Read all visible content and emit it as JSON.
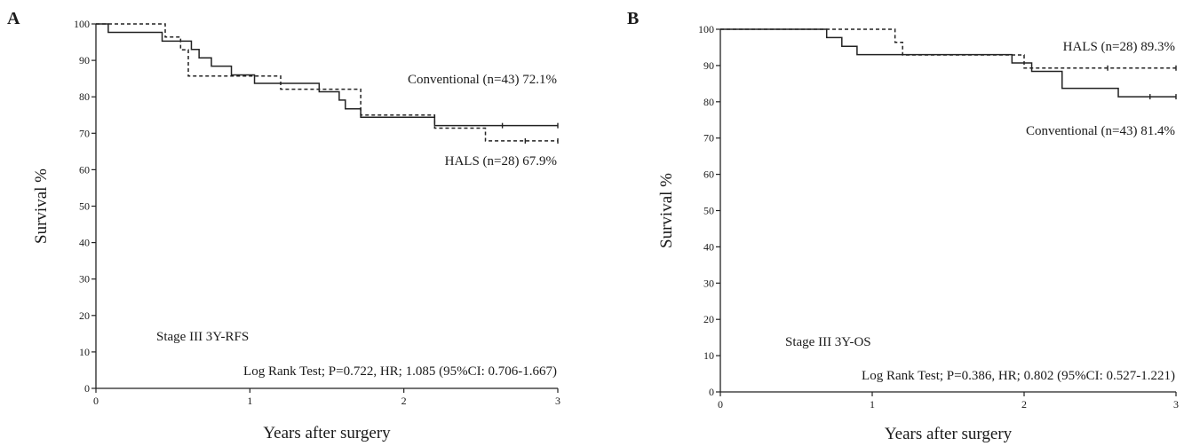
{
  "chart_data": [
    {
      "panel": "A",
      "type": "line",
      "xlabel": "Years after surgery",
      "ylabel": "Survival  %",
      "xlim": [
        0,
        3
      ],
      "ylim": [
        0,
        100
      ],
      "xticks": [
        "0",
        "1",
        "2",
        "3"
      ],
      "yticks": [
        "0",
        "10",
        "20",
        "30",
        "40",
        "50",
        "60",
        "70",
        "80",
        "90",
        "100"
      ],
      "grid": false,
      "series": [
        {
          "name": "Conventional (n=43) 72.1%",
          "style": "solid",
          "color": "#222222",
          "x": [
            0,
            0.08,
            0.43,
            0.62,
            0.67,
            0.75,
            0.88,
            1.0,
            1.03,
            1.2,
            1.45,
            1.58,
            1.62,
            1.72,
            2.0,
            2.2,
            3.0
          ],
          "y": [
            100,
            97.7,
            95.3,
            93.0,
            90.7,
            88.4,
            86.0,
            86.0,
            83.7,
            83.7,
            81.4,
            79.1,
            76.7,
            74.4,
            74.4,
            72.1,
            72.1
          ]
        },
        {
          "name": "HALS (n=28) 67.9%",
          "style": "dashed",
          "color": "#222222",
          "x": [
            0,
            0.42,
            0.45,
            0.55,
            0.6,
            0.95,
            1.0,
            1.15,
            1.2,
            1.55,
            1.72,
            2.15,
            2.2,
            2.5,
            2.53,
            3.0
          ],
          "y": [
            100,
            100,
            96.4,
            92.9,
            85.7,
            85.7,
            85.7,
            85.7,
            82.1,
            82.1,
            75.0,
            75.0,
            71.4,
            71.4,
            67.9,
            67.9
          ]
        }
      ],
      "legend_labels": [
        {
          "series": "Conventional (n=43) 72.1%",
          "position": "upper-right"
        },
        {
          "series": "HALS (n=28) 67.9%",
          "position": "right"
        }
      ],
      "annotations": [
        "Stage III 3Y-RFS",
        "Log Rank Test; P=0.722, HR; 1.085 (95%CI: 0.706-1.667)"
      ]
    },
    {
      "panel": "B",
      "type": "line",
      "xlabel": "Years after surgery",
      "ylabel": "Survival  %",
      "xlim": [
        0,
        3
      ],
      "ylim": [
        0,
        100
      ],
      "xticks": [
        "0",
        "1",
        "2",
        "3"
      ],
      "yticks": [
        "0",
        "10",
        "20",
        "30",
        "40",
        "50",
        "60",
        "70",
        "80",
        "90",
        "100"
      ],
      "grid": false,
      "series": [
        {
          "name": "HALS (n=28) 89.3%",
          "style": "dashed",
          "color": "#222222",
          "x": [
            0,
            1.1,
            1.15,
            1.2,
            1.95,
            2.0,
            3.0
          ],
          "y": [
            100,
            100,
            96.4,
            92.9,
            92.9,
            89.3,
            89.3
          ]
        },
        {
          "name": "Conventional (n=43) 81.4%",
          "style": "solid",
          "color": "#222222",
          "x": [
            0,
            0.7,
            0.8,
            0.9,
            1.6,
            1.92,
            2.05,
            2.25,
            2.62,
            3.0
          ],
          "y": [
            100,
            97.7,
            95.3,
            93.0,
            93.0,
            90.7,
            88.4,
            83.7,
            81.4,
            81.4
          ]
        }
      ],
      "legend_labels": [
        {
          "series": "HALS (n=28) 89.3%",
          "position": "upper-right"
        },
        {
          "series": "Conventional (n=43) 81.4%",
          "position": "right"
        }
      ],
      "annotations": [
        "Stage III 3Y-OS",
        "Log Rank Test; P=0.386, HR; 0.802 (95%CI: 0.527-1.221)"
      ]
    }
  ],
  "panels": [
    {
      "letter": "A"
    },
    {
      "letter": "B"
    }
  ]
}
